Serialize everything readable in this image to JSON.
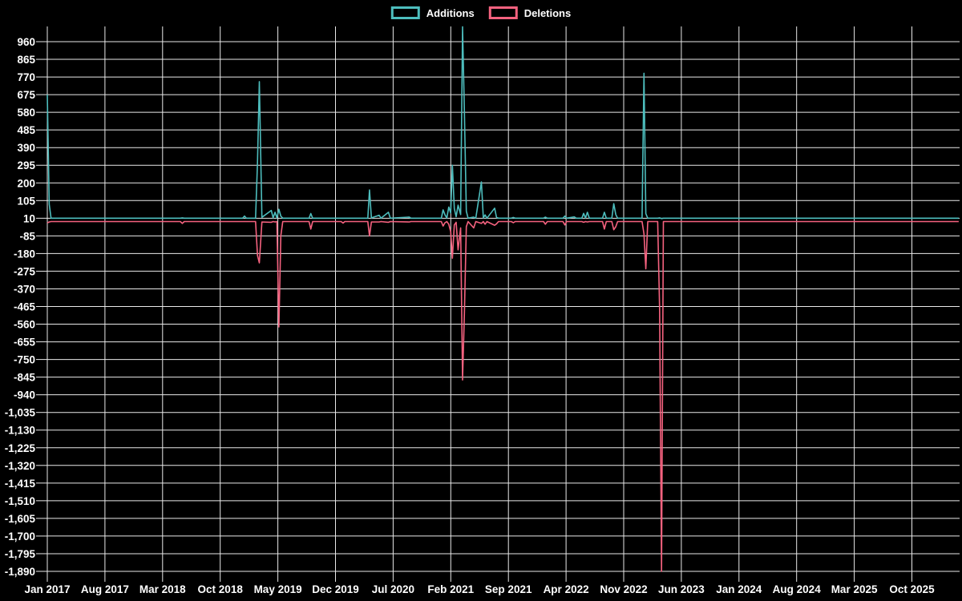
{
  "chart_data": {
    "type": "line",
    "title": "",
    "legend_position": "top-center",
    "background_color": "#000000",
    "grid": true,
    "grid_color": "#e9e9e9",
    "text_color": "#ffffff",
    "series": [
      {
        "name": "Additions",
        "color": "#4dbdbd"
      },
      {
        "name": "Deletions",
        "color": "#f5627f"
      }
    ],
    "x_tick_labels": [
      "Jan 2017",
      "Aug 2017",
      "Mar 2018",
      "Oct 2018",
      "May 2019",
      "Dec 2019",
      "Jul 2020",
      "Feb 2021",
      "Sep 2021",
      "Apr 2022",
      "Nov 2022",
      "Jun 2023",
      "Jan 2024",
      "Aug 2024",
      "Mar 2025",
      "Oct 2025"
    ],
    "x_tick_interval_months": 7,
    "y_tick_values": [
      960,
      865,
      770,
      675,
      580,
      485,
      390,
      295,
      200,
      105,
      10,
      -85,
      -180,
      -275,
      -370,
      -465,
      -560,
      -655,
      -750,
      -845,
      -940,
      -1035,
      -1130,
      -1225,
      -1320,
      -1415,
      -1510,
      -1605,
      -1700,
      -1795,
      -1890
    ],
    "y_tick_labels": [
      "960",
      "865",
      "770",
      "675",
      "580",
      "485",
      "390",
      "295",
      "200",
      "105",
      "10",
      "-85",
      "-180",
      "-275",
      "-370",
      "-465",
      "-560",
      "-655",
      "-750",
      "-845",
      "-940",
      "-1,035",
      "-1,130",
      "-1,225",
      "-1,320",
      "-1,415",
      "-1,510",
      "-1,605",
      "-1,700",
      "-1,795",
      "-1,890"
    ],
    "y_tick_step": -95,
    "ylim": [
      -1890,
      1042
    ],
    "columns": [
      "week",
      "additions",
      "deletions"
    ],
    "points": [
      [
        "2017-01-01",
        675,
        -15
      ],
      [
        "2017-01-08",
        85,
        -10
      ],
      [
        "2017-01-15",
        10,
        -8
      ],
      [
        "2018-05-06",
        10,
        -8
      ],
      [
        "2018-05-13",
        12,
        -18
      ],
      [
        "2018-05-20",
        10,
        -8
      ],
      [
        "2018-12-23",
        10,
        -8
      ],
      [
        "2018-12-30",
        22,
        -8
      ],
      [
        "2019-01-06",
        10,
        -8
      ],
      [
        "2019-02-10",
        10,
        -8
      ],
      [
        "2019-02-17",
        310,
        -190
      ],
      [
        "2019-02-24",
        745,
        -230
      ],
      [
        "2019-03-03",
        15,
        -10
      ],
      [
        "2019-04-07",
        52,
        -12
      ],
      [
        "2019-04-14",
        12,
        -8
      ],
      [
        "2019-04-21",
        42,
        -10
      ],
      [
        "2019-04-28",
        12,
        -8
      ],
      [
        "2019-05-05",
        58,
        -575
      ],
      [
        "2019-05-12",
        22,
        -85
      ],
      [
        "2019-05-19",
        10,
        -8
      ],
      [
        "2019-08-25",
        10,
        -8
      ],
      [
        "2019-09-01",
        35,
        -48
      ],
      [
        "2019-09-08",
        10,
        -8
      ],
      [
        "2019-12-22",
        10,
        -8
      ],
      [
        "2019-12-29",
        10,
        -16
      ],
      [
        "2020-01-05",
        10,
        -8
      ],
      [
        "2020-03-29",
        10,
        -8
      ],
      [
        "2020-04-05",
        162,
        -85
      ],
      [
        "2020-04-12",
        12,
        -10
      ],
      [
        "2020-05-10",
        26,
        -10
      ],
      [
        "2020-05-17",
        10,
        -8
      ],
      [
        "2020-06-14",
        42,
        -12
      ],
      [
        "2020-06-21",
        10,
        -8
      ],
      [
        "2020-08-30",
        16,
        -10
      ],
      [
        "2020-09-06",
        10,
        -8
      ],
      [
        "2020-12-27",
        10,
        -8
      ],
      [
        "2021-01-03",
        55,
        -32
      ],
      [
        "2021-01-10",
        28,
        -14
      ],
      [
        "2021-01-17",
        12,
        -8
      ],
      [
        "2021-01-24",
        70,
        -22
      ],
      [
        "2021-01-31",
        38,
        -62
      ],
      [
        "2021-02-07",
        295,
        -205
      ],
      [
        "2021-02-14",
        62,
        -26
      ],
      [
        "2021-02-21",
        18,
        -12
      ],
      [
        "2021-02-28",
        80,
        -160
      ],
      [
        "2021-03-07",
        30,
        -42
      ],
      [
        "2021-03-14",
        1040,
        -860
      ],
      [
        "2021-03-21",
        580,
        -500
      ],
      [
        "2021-03-28",
        48,
        -35
      ],
      [
        "2021-04-04",
        10,
        -8
      ],
      [
        "2021-04-25",
        16,
        -42
      ],
      [
        "2021-05-02",
        10,
        -8
      ],
      [
        "2021-05-23",
        205,
        -18
      ],
      [
        "2021-05-30",
        12,
        -8
      ],
      [
        "2021-06-06",
        28,
        -22
      ],
      [
        "2021-06-13",
        10,
        -8
      ],
      [
        "2021-07-11",
        64,
        -28
      ],
      [
        "2021-07-18",
        14,
        -20
      ],
      [
        "2021-07-25",
        10,
        -8
      ],
      [
        "2021-09-12",
        10,
        -8
      ],
      [
        "2021-09-19",
        14,
        -14
      ],
      [
        "2021-09-26",
        10,
        -8
      ],
      [
        "2022-01-09",
        10,
        -8
      ],
      [
        "2022-01-16",
        16,
        -22
      ],
      [
        "2022-01-23",
        10,
        -8
      ],
      [
        "2022-03-20",
        10,
        -8
      ],
      [
        "2022-03-27",
        22,
        -26
      ],
      [
        "2022-04-03",
        10,
        -8
      ],
      [
        "2022-05-01",
        17,
        -8
      ],
      [
        "2022-05-08",
        10,
        -8
      ],
      [
        "2022-05-29",
        10,
        -8
      ],
      [
        "2022-06-05",
        36,
        -12
      ],
      [
        "2022-06-12",
        12,
        -8
      ],
      [
        "2022-06-19",
        42,
        -10
      ],
      [
        "2022-06-26",
        10,
        -8
      ],
      [
        "2022-08-14",
        10,
        -8
      ],
      [
        "2022-08-21",
        42,
        -48
      ],
      [
        "2022-08-28",
        10,
        -8
      ],
      [
        "2022-09-18",
        10,
        -8
      ],
      [
        "2022-09-25",
        88,
        -52
      ],
      [
        "2022-10-02",
        30,
        -36
      ],
      [
        "2022-10-09",
        10,
        -8
      ],
      [
        "2023-01-08",
        10,
        -8
      ],
      [
        "2023-01-15",
        790,
        -75
      ],
      [
        "2023-01-22",
        35,
        -262
      ],
      [
        "2023-01-29",
        10,
        -8
      ],
      [
        "2023-03-05",
        10,
        -8
      ],
      [
        "2023-03-12",
        12,
        -480
      ],
      [
        "2023-03-19",
        8,
        -1890
      ],
      [
        "2023-03-26",
        10,
        -8
      ],
      [
        "2026-03-22",
        10,
        -8
      ]
    ]
  }
}
